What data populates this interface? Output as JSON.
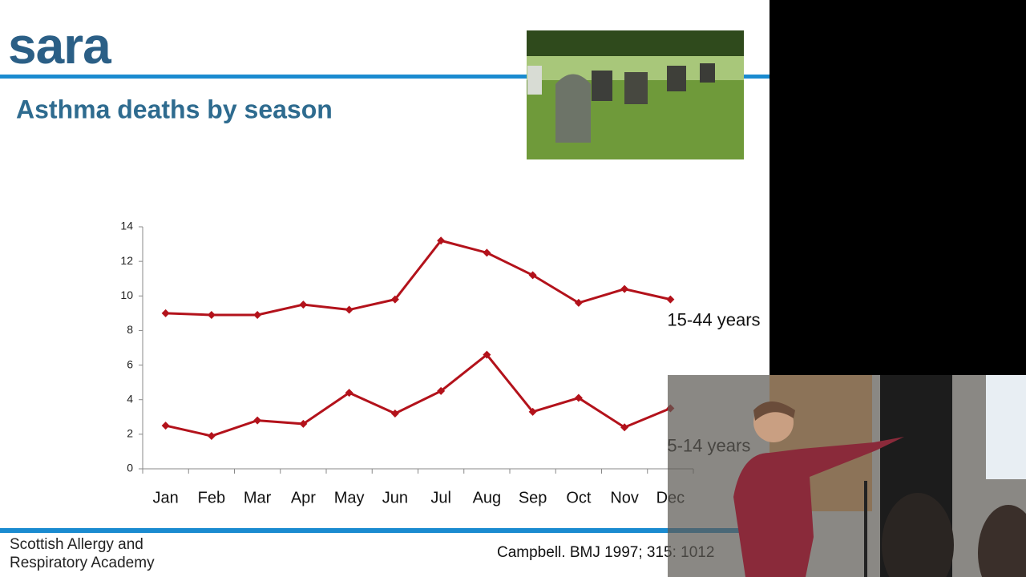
{
  "logo": "sara",
  "slide_title": "Asthma deaths by season",
  "footer": [
    "Scottish Allergy and",
    "Respiratory Academy"
  ],
  "citation": "Campbell.   BMJ 1997; 315: 1012",
  "chart_data": {
    "type": "line",
    "categories": [
      "Jan",
      "Feb",
      "Mar",
      "Apr",
      "May",
      "Jun",
      "Jul",
      "Aug",
      "Sep",
      "Oct",
      "Nov",
      "Dec"
    ],
    "series": [
      {
        "name": "15-44 years",
        "color": "#b3121b",
        "values": [
          9.0,
          8.9,
          8.9,
          9.5,
          9.2,
          9.8,
          13.2,
          12.5,
          11.2,
          9.6,
          10.4,
          9.8
        ]
      },
      {
        "name": "5-14 years",
        "color": "#b3121b",
        "values": [
          2.5,
          1.9,
          2.8,
          2.6,
          4.4,
          3.2,
          4.5,
          6.6,
          3.3,
          4.1,
          2.4,
          3.5
        ]
      }
    ],
    "ylim": [
      0,
      14
    ],
    "yticks": [
      0,
      2,
      4,
      6,
      8,
      10,
      12,
      14
    ],
    "grid": false
  }
}
